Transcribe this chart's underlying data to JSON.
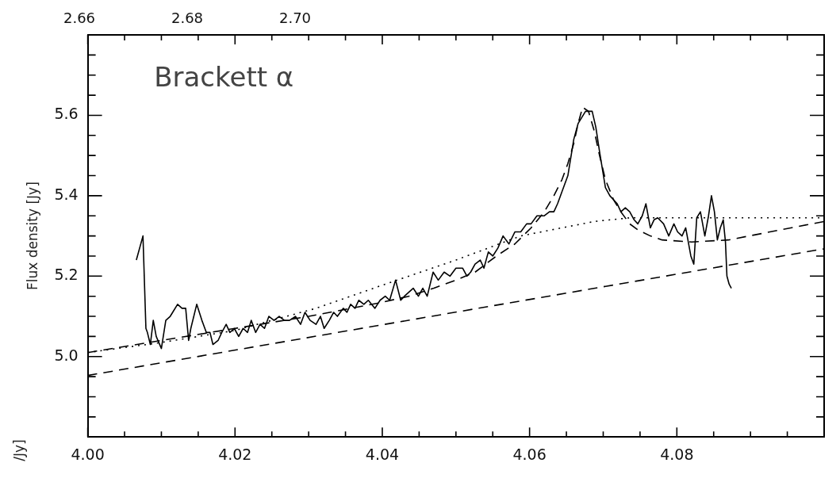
{
  "chart_data": {
    "type": "line",
    "ylabel": "Flux density [Jy]",
    "annotations": [
      "Brackett α",
      "2.66",
      "2.68",
      "2.70",
      "/Jy]"
    ],
    "xlim": [
      4.0,
      4.1
    ],
    "ylim": [
      4.8,
      5.8
    ],
    "xticks": [
      {
        "value": 4.0,
        "label": "4.00"
      },
      {
        "value": 4.005,
        "label": null
      },
      {
        "value": 4.01,
        "label": null
      },
      {
        "value": 4.015,
        "label": null
      },
      {
        "value": 4.02,
        "label": "4.02"
      },
      {
        "value": 4.025,
        "label": null
      },
      {
        "value": 4.03,
        "label": null
      },
      {
        "value": 4.035,
        "label": null
      },
      {
        "value": 4.04,
        "label": "4.04"
      },
      {
        "value": 4.045,
        "label": null
      },
      {
        "value": 4.05,
        "label": null
      },
      {
        "value": 4.055,
        "label": null
      },
      {
        "value": 4.06,
        "label": "4.06"
      },
      {
        "value": 4.065,
        "label": null
      },
      {
        "value": 4.07,
        "label": null
      },
      {
        "value": 4.075,
        "label": null
      },
      {
        "value": 4.08,
        "label": "4.08"
      },
      {
        "value": 4.085,
        "label": null
      },
      {
        "value": 4.09,
        "label": null
      },
      {
        "value": 4.095,
        "label": null
      },
      {
        "value": 4.1,
        "label": null
      }
    ],
    "yticks": [
      {
        "value": 4.85,
        "label": null
      },
      {
        "value": 4.9,
        "label": null
      },
      {
        "value": 4.95,
        "label": null
      },
      {
        "value": 5.0,
        "label": "5.0"
      },
      {
        "value": 5.05,
        "label": null
      },
      {
        "value": 5.1,
        "label": null
      },
      {
        "value": 5.15,
        "label": null
      },
      {
        "value": 5.2,
        "label": "5.2"
      },
      {
        "value": 5.25,
        "label": null
      },
      {
        "value": 5.3,
        "label": null
      },
      {
        "value": 5.35,
        "label": null
      },
      {
        "value": 5.4,
        "label": "5.4"
      },
      {
        "value": 5.45,
        "label": null
      },
      {
        "value": 5.5,
        "label": null
      },
      {
        "value": 5.55,
        "label": null
      },
      {
        "value": 5.6,
        "label": "5.6"
      },
      {
        "value": 5.65,
        "label": null
      },
      {
        "value": 5.7,
        "label": null
      },
      {
        "value": 5.75,
        "label": null
      }
    ],
    "grid": false,
    "legend": false,
    "series": [
      {
        "color": "#000000",
        "line_style": "solid",
        "x": [
          4.0066,
          4.0075,
          4.0079,
          4.0081,
          4.0085,
          4.0089,
          4.0093,
          4.01,
          4.0106,
          4.0112,
          4.0122,
          4.0128,
          4.0133,
          4.0137,
          4.014,
          4.0148,
          4.0155,
          4.0161,
          4.0166,
          4.017,
          4.0177,
          4.0182,
          4.0188,
          4.0193,
          4.0199,
          4.0205,
          4.0211,
          4.0217,
          4.0222,
          4.0228,
          4.0234,
          4.024,
          4.0246,
          4.0253,
          4.026,
          4.0267,
          4.0274,
          4.0282,
          4.0289,
          4.0295,
          4.0302,
          4.031,
          4.0316,
          4.0321,
          4.0328,
          4.0334,
          4.0339,
          4.0347,
          4.0352,
          4.0357,
          4.0363,
          4.0368,
          4.0375,
          4.0381,
          4.039,
          4.0397,
          4.0404,
          4.041,
          4.0418,
          4.0425,
          4.043,
          4.0436,
          4.0442,
          4.0449,
          4.0455,
          4.0461,
          4.0469,
          4.0476,
          4.0484,
          4.0492,
          4.05,
          4.0509,
          4.0515,
          4.052,
          4.0526,
          4.0533,
          4.0538,
          4.0544,
          4.055,
          4.0557,
          4.0564,
          4.0572,
          4.058,
          4.0588,
          4.0596,
          4.0602,
          4.061,
          4.062,
          4.0627,
          4.0633,
          4.0638,
          4.0644,
          4.0652,
          4.066,
          4.0666,
          4.0676,
          4.0685,
          4.069,
          4.0695,
          4.0703,
          4.0709,
          4.0714,
          4.0719,
          4.0724,
          4.073,
          4.0736,
          4.0742,
          4.0747,
          4.0753,
          4.0758,
          4.0764,
          4.0769,
          4.0774,
          4.0782,
          4.0789,
          4.0796,
          4.0801,
          4.0807,
          4.0812,
          4.0819,
          4.0823,
          4.0827,
          4.0832,
          4.0838,
          4.0843,
          4.0847,
          4.0851,
          4.0855,
          4.0859,
          4.0863,
          4.0866,
          4.0868,
          4.0871,
          4.0874
        ],
        "values": [
          5.24,
          5.3,
          5.07,
          5.06,
          5.03,
          5.09,
          5.05,
          5.02,
          5.09,
          5.1,
          5.13,
          5.12,
          5.12,
          5.04,
          5.07,
          5.13,
          5.09,
          5.06,
          5.06,
          5.03,
          5.04,
          5.06,
          5.08,
          5.06,
          5.07,
          5.05,
          5.07,
          5.06,
          5.09,
          5.06,
          5.08,
          5.07,
          5.1,
          5.09,
          5.1,
          5.09,
          5.09,
          5.1,
          5.08,
          5.11,
          5.09,
          5.08,
          5.1,
          5.07,
          5.09,
          5.11,
          5.1,
          5.12,
          5.11,
          5.13,
          5.12,
          5.14,
          5.13,
          5.14,
          5.12,
          5.14,
          5.15,
          5.14,
          5.19,
          5.14,
          5.15,
          5.16,
          5.17,
          5.15,
          5.17,
          5.15,
          5.21,
          5.19,
          5.21,
          5.2,
          5.22,
          5.22,
          5.2,
          5.21,
          5.23,
          5.24,
          5.22,
          5.26,
          5.25,
          5.27,
          5.3,
          5.28,
          5.31,
          5.31,
          5.33,
          5.33,
          5.35,
          5.35,
          5.36,
          5.36,
          5.38,
          5.41,
          5.45,
          5.54,
          5.58,
          5.61,
          5.61,
          5.57,
          5.51,
          5.42,
          5.4,
          5.39,
          5.38,
          5.36,
          5.37,
          5.36,
          5.34,
          5.33,
          5.35,
          5.38,
          5.32,
          5.34,
          5.345,
          5.33,
          5.3,
          5.33,
          5.31,
          5.3,
          5.32,
          5.25,
          5.23,
          5.345,
          5.36,
          5.3,
          5.35,
          5.4,
          5.36,
          5.29,
          5.32,
          5.34,
          5.285,
          5.2,
          5.18,
          5.17
        ]
      },
      {
        "color": "#000000",
        "line_style": "dashed",
        "x": [
          4.0,
          4.01,
          4.02,
          4.03,
          4.04,
          4.0436,
          4.047,
          4.05,
          4.0526,
          4.0555,
          4.058,
          4.0602,
          4.062,
          4.0633,
          4.0644,
          4.0652,
          4.066,
          4.0666,
          4.0672,
          4.068,
          4.0688,
          4.0695,
          4.0703,
          4.0714,
          4.0724,
          4.0736,
          4.0747,
          4.0764,
          4.078,
          4.082,
          4.087,
          4.1
        ],
        "values": [
          5.01,
          5.04,
          5.07,
          5.1,
          5.135,
          5.15,
          5.17,
          5.19,
          5.21,
          5.25,
          5.28,
          5.32,
          5.36,
          5.4,
          5.44,
          5.48,
          5.53,
          5.58,
          5.62,
          5.61,
          5.56,
          5.5,
          5.44,
          5.39,
          5.36,
          5.33,
          5.315,
          5.3,
          5.29,
          5.285,
          5.29,
          5.336
        ]
      },
      {
        "color": "#000000",
        "line_style": "dotted",
        "x": [
          4.0,
          4.01,
          4.02,
          4.025,
          4.031,
          4.0404,
          4.05,
          4.0588,
          4.0688,
          4.0736,
          4.1
        ],
        "values": [
          5.01,
          5.035,
          5.065,
          5.09,
          5.12,
          5.18,
          5.24,
          5.3,
          5.336,
          5.345,
          5.345
        ]
      },
      {
        "color": "#000000",
        "line_style": "dashed",
        "x": [
          4.0,
          4.1
        ],
        "values": [
          4.953,
          5.268
        ]
      }
    ]
  }
}
